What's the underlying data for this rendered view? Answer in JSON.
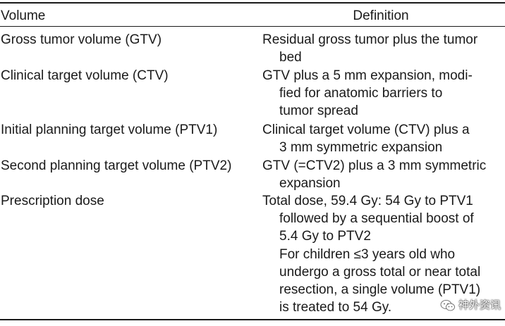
{
  "table": {
    "headers": {
      "volume": "Volume",
      "definition": "Definition"
    },
    "rows": [
      {
        "volume": "Gross tumor volume (GTV)",
        "definition_lines": [
          "Residual gross tumor plus the tumor",
          "bed"
        ]
      },
      {
        "volume": "Clinical target volume (CTV)",
        "definition_lines": [
          "GTV plus a 5 mm expansion, modi-",
          "fied for anatomic barriers to",
          "tumor spread"
        ]
      },
      {
        "volume": "Initial planning target volume (PTV1)",
        "definition_lines": [
          "Clinical target volume (CTV) plus a",
          "3 mm symmetric expansion"
        ]
      },
      {
        "volume": "Second planning target volume (PTV2)",
        "definition_lines": [
          "GTV (=CTV2) plus a 3 mm symmetric",
          "expansion"
        ]
      },
      {
        "volume": "Prescription dose",
        "definition_lines": [
          "Total dose, 59.4 Gy: 54 Gy to PTV1",
          "followed by a sequential boost of",
          "5.4 Gy to PTV2",
          "For children ≤3 years old who",
          "undergo a gross total or near total",
          "resection, a single volume (PTV1)",
          "is treated to 54 Gy."
        ]
      }
    ]
  },
  "watermark": {
    "text": "神外资讯",
    "icon": "wechat-icon"
  }
}
